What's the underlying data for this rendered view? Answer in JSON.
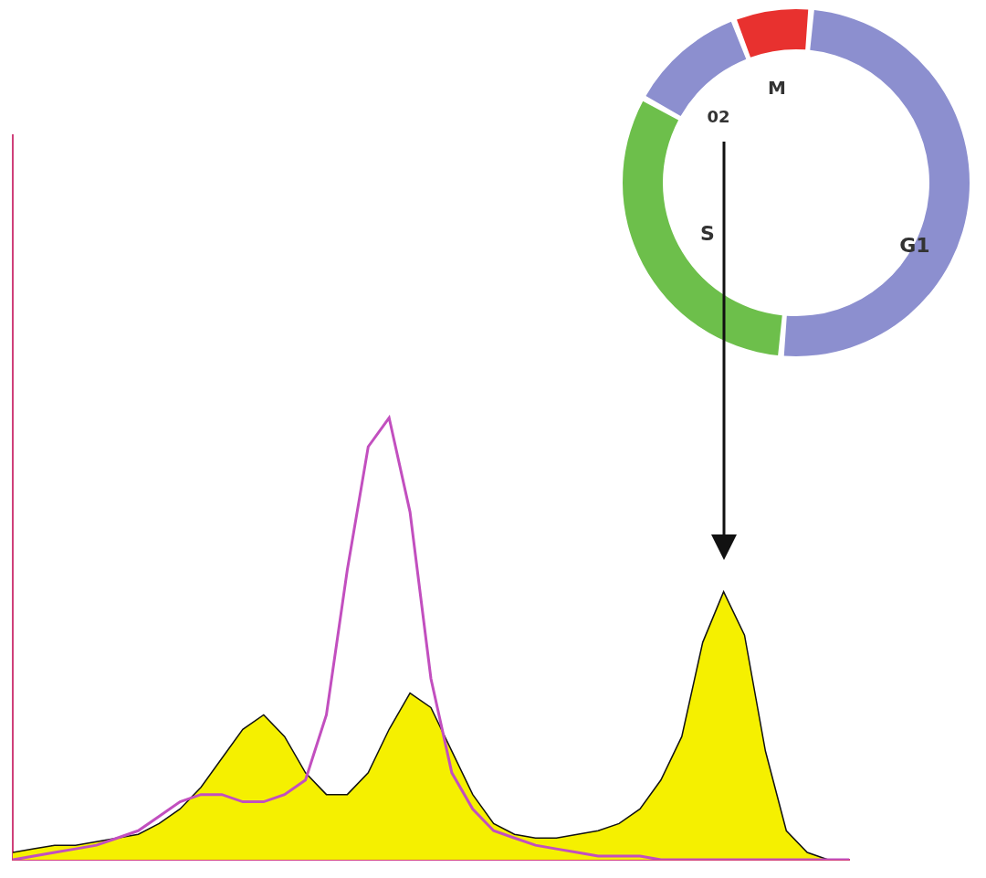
{
  "chart_data": {
    "type": "line",
    "x": [
      0,
      25,
      50,
      75,
      100,
      125,
      150,
      175,
      200,
      225,
      250,
      275,
      300,
      325,
      350,
      375,
      400,
      425,
      450,
      475,
      500,
      525,
      550,
      575,
      600,
      625,
      650,
      675,
      700,
      725,
      750,
      775,
      800,
      825,
      850,
      875,
      900,
      925,
      950,
      975,
      1000
    ],
    "series": [
      {
        "color": "#f5f000",
        "values": [
          1,
          1.5,
          2,
          2,
          2.5,
          3,
          3.5,
          5,
          7,
          10,
          14,
          18,
          20,
          17,
          12,
          9,
          9,
          12,
          18,
          23,
          21,
          15,
          9,
          5,
          3.5,
          3,
          3,
          3.5,
          4,
          5,
          7,
          11,
          17,
          30,
          37,
          31,
          15,
          4,
          1,
          0,
          0
        ]
      },
      {
        "color": "#c24fbf",
        "values": [
          0,
          0.5,
          1,
          1.5,
          2,
          3,
          4,
          6,
          8,
          9,
          9,
          8,
          8,
          9,
          11,
          20,
          40,
          57,
          61,
          48,
          25,
          12,
          7,
          4,
          3,
          2,
          1.5,
          1,
          0.5,
          0.5,
          0.5,
          0,
          0,
          0,
          0,
          0,
          0,
          0,
          0,
          0,
          0
        ]
      }
    ],
    "xlim": [
      0,
      1000
    ],
    "ylim": [
      0,
      100
    ],
    "grid": false,
    "tick_labels": false
  },
  "diagram": {
    "phases": [
      {
        "label": "M",
        "color": "#e8312f"
      },
      {
        "label": "G1",
        "color": "#8c8fcf"
      },
      {
        "label": "S",
        "color": "#6dbf4b"
      },
      {
        "label": "02",
        "color": "#8c8fcf"
      }
    ]
  }
}
